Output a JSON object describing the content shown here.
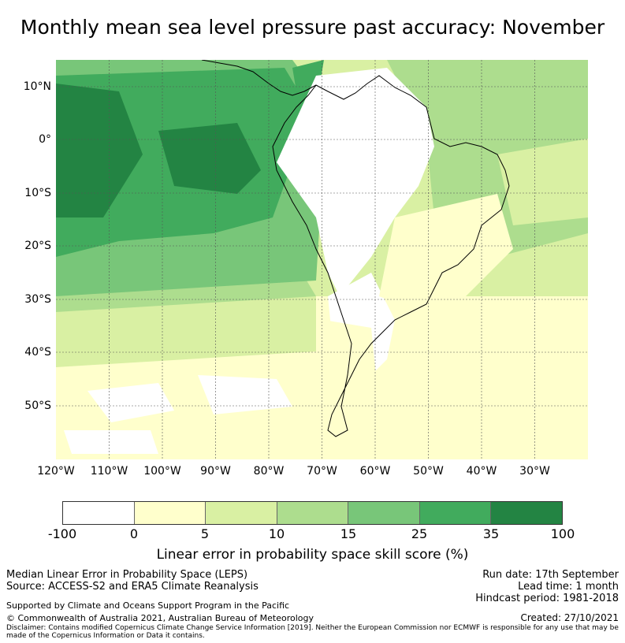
{
  "title": "Monthly mean sea level pressure past accuracy: November",
  "map": {
    "lat_ticks": [
      "10°N",
      "0°",
      "10°S",
      "20°S",
      "30°S",
      "40°S",
      "50°S"
    ],
    "lon_ticks": [
      "120°W",
      "110°W",
      "100°W",
      "90°W",
      "80°W",
      "70°W",
      "60°W",
      "50°W",
      "40°W",
      "30°W"
    ],
    "lat_range": [
      -60,
      15
    ],
    "lon_range": [
      -120,
      -20
    ]
  },
  "colorbar": {
    "ticks": [
      "-100",
      "0",
      "5",
      "10",
      "15",
      "25",
      "35",
      "100"
    ],
    "colors": [
      "#ffffff",
      "#ffffcc",
      "#d9f0a3",
      "#addd8e",
      "#78c679",
      "#41ab5d",
      "#238443"
    ],
    "label": "Linear error in probability space skill score (%)"
  },
  "footer": {
    "line1": "Median Linear Error in Probability Space (LEPS)",
    "line2": "Source: ACCESS-S2 and ERA5 Climate Reanalysis",
    "line3": "Supported by Climate and Oceans Support Program in the Pacific",
    "line4": "© Commonwealth of Australia 2021, Australian Bureau of Meteorology",
    "run_date": "Run date: 17th September",
    "lead_time": "Lead time: 1 month",
    "hindcast": "Hindcast period: 1981-2018",
    "created": "Created: 27/10/2021",
    "disclaimer": "Disclaimer: Contains modified Copernicus Climate Change Service Information [2019]. Neither the European Commission nor ECMWF is responsible for any use that may be made of the Copernicus Information or Data it contains."
  }
}
